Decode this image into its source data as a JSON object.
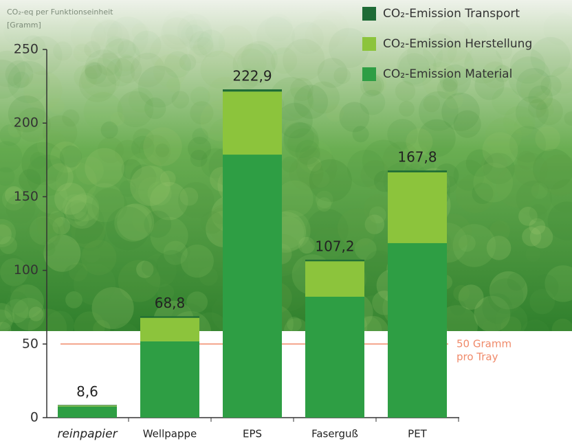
{
  "chart_data": {
    "type": "stacked_bar",
    "y_label_lines": [
      "CO₂-eq per Funktionseinheit",
      "[Gramm]"
    ],
    "categories": [
      "reinpapier",
      "Wellpappe",
      "EPS",
      "Faserguß",
      "PET"
    ],
    "series": [
      {
        "name": "CO₂-Emission Material",
        "color": "#2e9e44",
        "values": [
          7.6,
          51.8,
          178.6,
          82.1,
          118.5
        ]
      },
      {
        "name": "CO₂-Emission Herstellung",
        "color": "#8cc43c",
        "values": [
          0.6,
          16.0,
          42.8,
          24.1,
          48.1
        ]
      },
      {
        "name": "CO₂-Emission Transport",
        "color": "#1e6b35",
        "values": [
          0.4,
          1.0,
          1.5,
          1.0,
          1.2
        ]
      }
    ],
    "totals": [
      8.6,
      68.8,
      222.9,
      107.2,
      167.8
    ],
    "total_labels": [
      "8,6",
      "68,8",
      "222,9",
      "107,2",
      "167,8"
    ],
    "ylim": [
      0,
      250
    ],
    "yticks": [
      0,
      50,
      100,
      150,
      200,
      250
    ],
    "reference_line": {
      "value": 50,
      "color": "#f08a6a",
      "label_lines": [
        "50 Gramm",
        "pro Tray"
      ]
    }
  }
}
